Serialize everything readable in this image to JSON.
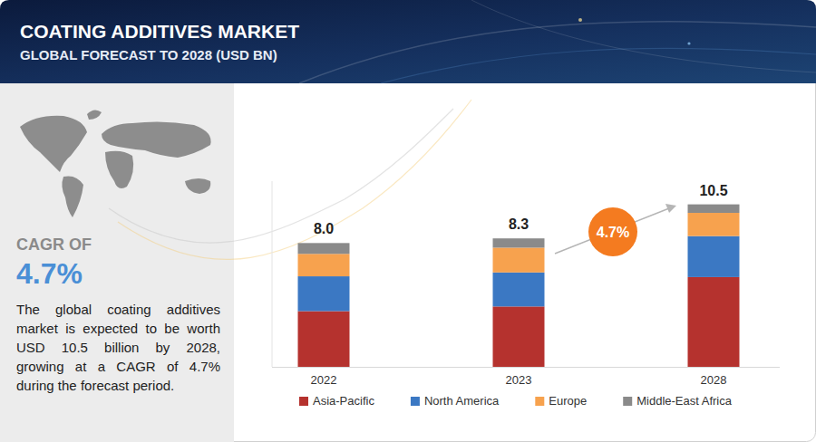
{
  "chart_data": {
    "type": "bar",
    "stacked": true,
    "title": "COATING ADDITIVES MARKET",
    "subtitle": "GLOBAL FORECAST TO 2028 (USD BN)",
    "annotations": {
      "cagr_label": "CAGR OF",
      "cagr_value": "4.7%",
      "description": "The global coating additives market is expected to be worth USD 10.5 billion by 2028, growing at a CAGR of 4.7% during the forecast period.",
      "growth_badge": "4.7%"
    },
    "categories": [
      "2022",
      "2023",
      "2028"
    ],
    "series": [
      {
        "name": "Asia-Pacific",
        "color": "#b5322e",
        "values": [
          3.6,
          3.9,
          5.8
        ]
      },
      {
        "name": "North America",
        "color": "#3b78c3",
        "values": [
          2.25,
          2.2,
          2.65
        ]
      },
      {
        "name": "Europe",
        "color": "#f7a24e",
        "values": [
          1.45,
          1.6,
          1.5
        ]
      },
      {
        "name": "Middle-East Africa",
        "color": "#8a8a8a",
        "values": [
          0.7,
          0.6,
          0.55
        ]
      }
    ],
    "totals": [
      8,
      8.3,
      10.5
    ],
    "total_labels": [
      "8.0",
      "8.3",
      "10.5"
    ],
    "ylim": [
      0,
      12
    ],
    "yticks": [],
    "tick_labels": "x",
    "legend": "bottom"
  }
}
